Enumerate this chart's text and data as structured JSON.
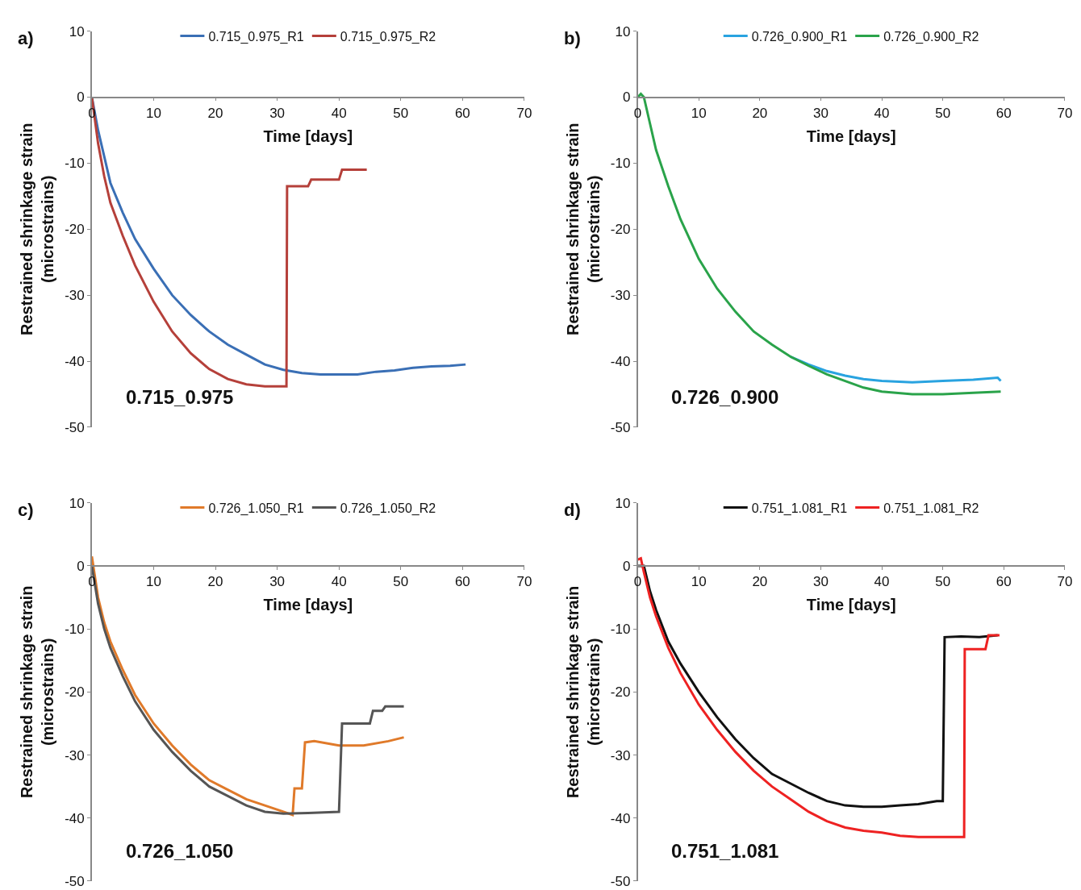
{
  "chart_data": [
    {
      "type": "line",
      "title": "a)",
      "xlabel": "Time [days]",
      "ylabel": "Restrained shrinkage strain\n(microstrains)",
      "annotations": [
        "0.715_0.975"
      ],
      "xlim": [
        0,
        70
      ],
      "xticks": [
        0,
        10,
        20,
        30,
        40,
        50,
        60,
        70
      ],
      "ylim": [
        -50,
        10
      ],
      "yticks": [
        -50,
        -40,
        -30,
        -20,
        -10,
        0,
        10
      ],
      "grid": false,
      "legend": "top",
      "marker": "none",
      "line_style": "solid",
      "series": [
        {
          "name": "0.715_0.975_R1",
          "color": "#3a6fb5",
          "x": [
            0,
            1,
            2,
            3,
            5,
            7,
            10,
            13,
            16,
            19,
            22,
            25,
            28,
            31,
            34,
            37,
            40,
            43,
            46,
            49,
            52,
            55,
            58,
            60.5
          ],
          "values": [
            0,
            -5,
            -9,
            -13,
            -17.5,
            -21.5,
            -26,
            -30,
            -33,
            -35.5,
            -37.5,
            -39,
            -40.5,
            -41.3,
            -41.8,
            -42,
            -42,
            -42,
            -41.6,
            -41.4,
            -41,
            -40.8,
            -40.7,
            -40.5
          ]
        },
        {
          "name": "0.715_0.975_R2",
          "color": "#b5403a",
          "x": [
            0,
            1,
            2,
            3,
            5,
            7,
            10,
            13,
            16,
            19,
            22,
            25,
            28,
            31,
            31.5,
            31.6,
            35,
            35.5,
            40,
            40.5,
            44.5
          ],
          "values": [
            0,
            -7,
            -12,
            -16,
            -21,
            -25.5,
            -31,
            -35.5,
            -38.8,
            -41.2,
            -42.7,
            -43.5,
            -43.8,
            -43.8,
            -43.8,
            -13.5,
            -13.5,
            -12.5,
            -12.5,
            -11,
            -11
          ]
        }
      ]
    },
    {
      "type": "line",
      "title": "b)",
      "xlabel": "Time [days]",
      "ylabel": "Restrained shrinkage strain\n(microstrains)",
      "annotations": [
        "0.726_0.900"
      ],
      "xlim": [
        0,
        70
      ],
      "xticks": [
        0,
        10,
        20,
        30,
        40,
        50,
        60,
        70
      ],
      "ylim": [
        -50,
        10
      ],
      "yticks": [
        -50,
        -40,
        -30,
        -20,
        -10,
        0,
        10
      ],
      "grid": false,
      "legend": "top",
      "marker": "none",
      "line_style": "solid",
      "series": [
        {
          "name": "0.726_0.900_R1",
          "color": "#29a3e0",
          "x": [
            25,
            28,
            31,
            34,
            37,
            40,
            45,
            50,
            55,
            59,
            59.5
          ],
          "values": [
            -39.3,
            -40.5,
            -41.5,
            -42.2,
            -42.7,
            -43,
            -43.2,
            -43,
            -42.8,
            -42.5,
            -43
          ]
        },
        {
          "name": "0.726_0.900_R2",
          "color": "#2aa34a",
          "x": [
            0,
            0.5,
            1,
            2,
            3,
            5,
            7,
            10,
            13,
            16,
            19,
            22,
            25,
            28,
            31,
            34,
            37,
            40,
            45,
            50,
            55,
            59.5
          ],
          "values": [
            0,
            0.5,
            0,
            -4,
            -8,
            -13.5,
            -18.5,
            -24.5,
            -29,
            -32.5,
            -35.5,
            -37.5,
            -39.3,
            -40.7,
            -42,
            -43,
            -44,
            -44.6,
            -45,
            -45,
            -44.8,
            -44.6
          ]
        }
      ]
    },
    {
      "type": "line",
      "title": "c)",
      "xlabel": "Time [days]",
      "ylabel": "Restrained shrinkage strain\n(microstrains)",
      "annotations": [
        "0.726_1.050"
      ],
      "xlim": [
        0,
        70
      ],
      "xticks": [
        0,
        10,
        20,
        30,
        40,
        50,
        60,
        70
      ],
      "ylim": [
        -50,
        10
      ],
      "yticks": [
        -50,
        -40,
        -30,
        -20,
        -10,
        0,
        10
      ],
      "grid": false,
      "legend": "top",
      "marker": "none",
      "line_style": "solid",
      "series": [
        {
          "name": "0.726_1.050_R1",
          "color": "#e07a2a",
          "x": [
            0,
            1,
            2,
            3,
            5,
            7,
            10,
            13,
            16,
            19,
            22,
            25,
            28,
            31,
            32.5,
            32.8,
            34,
            34.5,
            36,
            40,
            44,
            48,
            50.5
          ],
          "values": [
            1.5,
            -5,
            -9,
            -12,
            -16.5,
            -20.5,
            -25,
            -28.5,
            -31.5,
            -34,
            -35.5,
            -37,
            -38,
            -39,
            -39.5,
            -35.3,
            -35.3,
            -28,
            -27.8,
            -28.5,
            -28.5,
            -27.8,
            -27.2
          ]
        },
        {
          "name": "0.726_1.050_R2",
          "color": "#555555",
          "x": [
            0,
            1,
            2,
            3,
            5,
            7,
            10,
            13,
            16,
            19,
            22,
            25,
            28,
            31,
            35,
            40,
            40.5,
            45,
            45.5,
            47,
            47.5,
            50.5
          ],
          "values": [
            0,
            -6,
            -10,
            -13,
            -17.5,
            -21.5,
            -26,
            -29.5,
            -32.5,
            -35,
            -36.5,
            -38,
            -39,
            -39.3,
            -39.2,
            -39,
            -25,
            -25,
            -23,
            -23,
            -22.3,
            -22.3
          ]
        }
      ]
    },
    {
      "type": "line",
      "title": "d)",
      "xlabel": "Time [days]",
      "ylabel": "Restrained shrinkage strain\n(microstrains)",
      "annotations": [
        "0.751_1.081"
      ],
      "xlim": [
        0,
        70
      ],
      "xticks": [
        0,
        10,
        20,
        30,
        40,
        50,
        60,
        70
      ],
      "ylim": [
        -50,
        10
      ],
      "yticks": [
        -50,
        -40,
        -30,
        -20,
        -10,
        0,
        10
      ],
      "grid": false,
      "legend": "top",
      "marker": "none",
      "line_style": "solid",
      "series": [
        {
          "name": "0.751_1.081_R1",
          "color": "#111111",
          "x": [
            0,
            1,
            2,
            3,
            5,
            7,
            10,
            13,
            16,
            19,
            22,
            25,
            28,
            31,
            34,
            37,
            40,
            43,
            46,
            49,
            50,
            50.3,
            53,
            56,
            59
          ],
          "values": [
            0,
            0,
            -4,
            -7,
            -12,
            -15.5,
            -20,
            -24,
            -27.5,
            -30.5,
            -33,
            -34.5,
            -36,
            -37.3,
            -38,
            -38.2,
            -38.2,
            -38,
            -37.8,
            -37.3,
            -37.3,
            -11.3,
            -11.2,
            -11.3,
            -11
          ]
        },
        {
          "name": "0.751_1.081_R2",
          "color": "#ee2222",
          "x": [
            0,
            0.5,
            1,
            2,
            3,
            5,
            7,
            10,
            13,
            16,
            19,
            22,
            25,
            28,
            31,
            34,
            37,
            40,
            43,
            46,
            50,
            53.5,
            53.6,
            57,
            57.5,
            59.3
          ],
          "values": [
            1,
            1.2,
            -1,
            -5,
            -8,
            -13,
            -17,
            -22,
            -26,
            -29.5,
            -32.5,
            -35,
            -37,
            -39,
            -40.5,
            -41.5,
            -42,
            -42.3,
            -42.8,
            -43,
            -43,
            -43,
            -13.2,
            -13.2,
            -11,
            -11
          ]
        }
      ]
    }
  ]
}
